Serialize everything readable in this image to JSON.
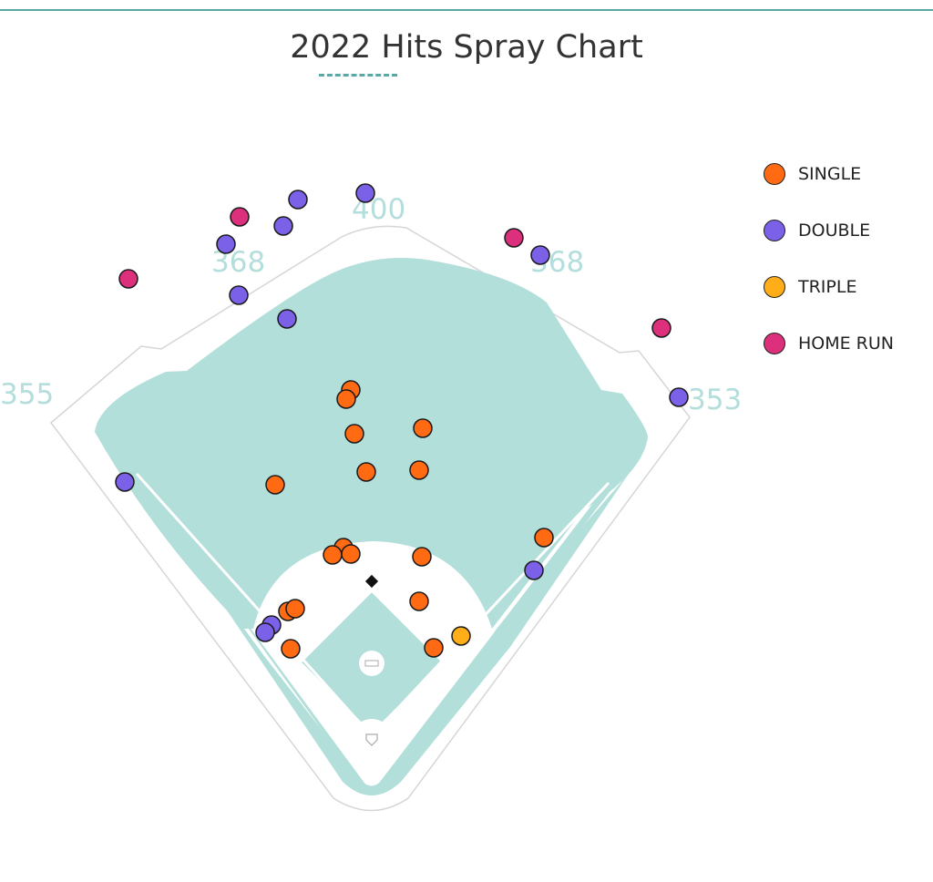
{
  "chart_data": {
    "type": "scatter",
    "title": "2022 Hits Spray Chart",
    "fence_distances": {
      "left_field_line": "355",
      "left_center": "368",
      "center_field": "400",
      "right_center": "368",
      "right_field_line": "353"
    },
    "series": [
      {
        "name": "SINGLE",
        "color": "#ff6a13",
        "points": [
          [
            385,
            428
          ],
          [
            380,
            438
          ],
          [
            389,
            476
          ],
          [
            464,
            470
          ],
          [
            402,
            518
          ],
          [
            460,
            516
          ],
          [
            302,
            532
          ],
          [
            377,
            601
          ],
          [
            365,
            609
          ],
          [
            385,
            608
          ],
          [
            463,
            611
          ],
          [
            460,
            660
          ],
          [
            316,
            671
          ],
          [
            324,
            668
          ],
          [
            319,
            712
          ],
          [
            476,
            711
          ],
          [
            597,
            590
          ]
        ]
      },
      {
        "name": "DOUBLE",
        "color": "#7b61e8",
        "points": [
          [
            401,
            212
          ],
          [
            327,
            219
          ],
          [
            311,
            248
          ],
          [
            248,
            268
          ],
          [
            262,
            324
          ],
          [
            315,
            350
          ],
          [
            593,
            280
          ],
          [
            745,
            436
          ],
          [
            137,
            529
          ],
          [
            586,
            626
          ],
          [
            298,
            686
          ],
          [
            291,
            694
          ]
        ]
      },
      {
        "name": "TRIPLE",
        "color": "#ffae1a",
        "points": [
          [
            506,
            698
          ]
        ]
      },
      {
        "name": "HOME RUN",
        "color": "#dc2f7c",
        "points": [
          [
            263,
            238
          ],
          [
            141,
            306
          ],
          [
            564,
            261
          ],
          [
            726,
            360
          ]
        ]
      }
    ]
  }
}
